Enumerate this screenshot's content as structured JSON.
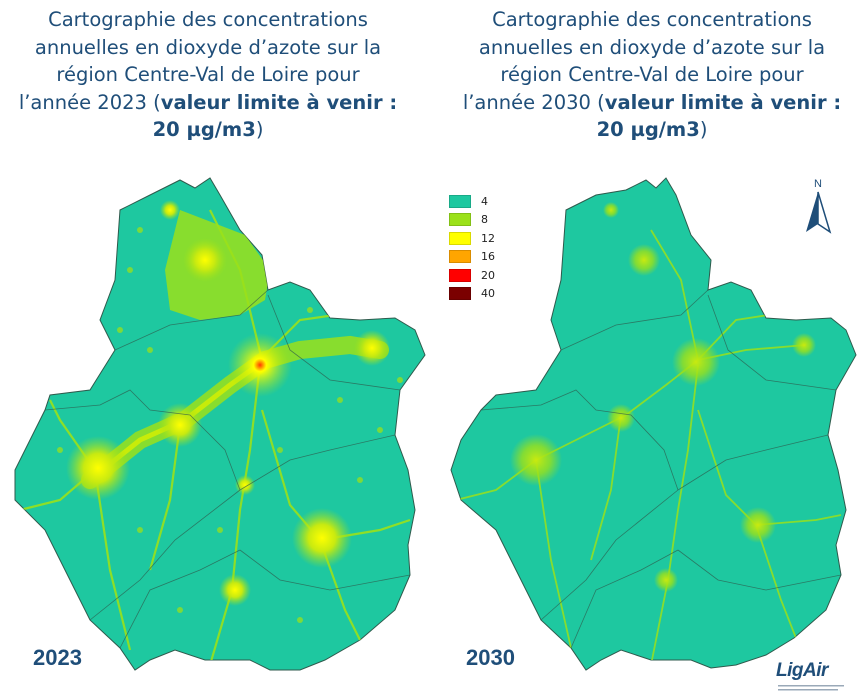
{
  "titles": {
    "left": {
      "line1": "Cartographie des concentrations",
      "line2": "annuelles en dioxyde d’azote sur la",
      "line3": "région Centre-Val de Loire pour",
      "line4_prefix": "l’année 2023 (",
      "bold1": "valeur limite à venir :",
      "bold2": "20 µg/m3",
      "suffix": ")"
    },
    "right": {
      "line1": "Cartographie des concentrations",
      "line2": "annuelles en dioxyde d’azote sur la",
      "line3": "région Centre-Val de Loire pour",
      "line4_prefix": "l’année 2030 (",
      "bold1": "valeur limite à venir :",
      "bold2": "20 µg/m3",
      "suffix": ")"
    }
  },
  "years": {
    "left": "2023",
    "right": "2030"
  },
  "legend": [
    {
      "label": "4",
      "color": "#1ec8a0"
    },
    {
      "label": "8",
      "color": "#9be11a"
    },
    {
      "label": "12",
      "color": "#ffff00"
    },
    {
      "label": "16",
      "color": "#ffa500"
    },
    {
      "label": "20",
      "color": "#ff0000"
    },
    {
      "label": "40",
      "color": "#7b0000"
    }
  ],
  "north": {
    "label": "N",
    "icon": "north-arrow-icon"
  },
  "logo": {
    "text": "LigAir"
  },
  "colors": {
    "base": "#1ec8a0",
    "urban": "#9be11a",
    "hotspot": "#ffff00",
    "border": "#2e5a4c",
    "title": "#1f4e79"
  }
}
